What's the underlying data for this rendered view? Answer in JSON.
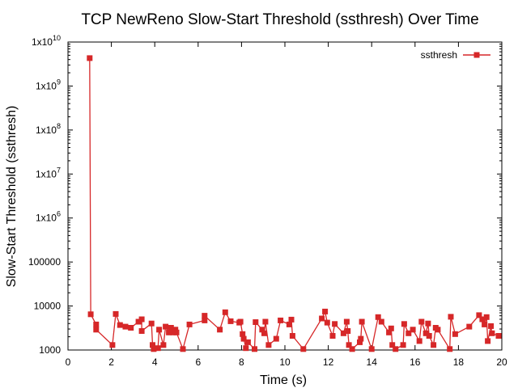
{
  "chart_data": {
    "type": "line",
    "title": "TCP NewReno Slow-Start Threshold (ssthresh) Over Time",
    "xlabel": "Time (s)",
    "ylabel": "Slow-Start Threshold (ssthresh)",
    "xlim": [
      0,
      20
    ],
    "ylim": [
      1000,
      10000000000
    ],
    "yscale": "log",
    "grid": false,
    "legend_position": "top-right",
    "color": "#d62728",
    "x_ticks": [
      "0",
      "2",
      "4",
      "6",
      "8",
      "10",
      "12",
      "14",
      "16",
      "18",
      "20"
    ],
    "y_ticks": [
      {
        "base": "1000",
        "exp": ""
      },
      {
        "base": "10000",
        "exp": ""
      },
      {
        "base": "100000",
        "exp": ""
      },
      {
        "base": "1x10",
        "exp": "6"
      },
      {
        "base": "1x10",
        "exp": "7"
      },
      {
        "base": "1x10",
        "exp": "8"
      },
      {
        "base": "1x10",
        "exp": "9"
      },
      {
        "base": "1x10",
        "exp": "10"
      }
    ],
    "series": [
      {
        "name": "ssthresh",
        "points": [
          [
            1.0,
            4300000000
          ],
          [
            1.05,
            6500
          ],
          [
            1.3,
            3800
          ],
          [
            1.3,
            2900
          ],
          [
            2.05,
            1300
          ],
          [
            2.2,
            6600
          ],
          [
            2.4,
            3700
          ],
          [
            2.65,
            3400
          ],
          [
            2.9,
            3200
          ],
          [
            3.25,
            4400
          ],
          [
            3.4,
            5000
          ],
          [
            3.4,
            2700
          ],
          [
            3.85,
            4000
          ],
          [
            3.9,
            1300
          ],
          [
            3.95,
            1050
          ],
          [
            4.15,
            1100
          ],
          [
            4.2,
            2900
          ],
          [
            4.4,
            1300
          ],
          [
            4.5,
            3400
          ],
          [
            4.65,
            2500
          ],
          [
            4.75,
            3200
          ],
          [
            4.85,
            2500
          ],
          [
            4.95,
            2900
          ],
          [
            5.0,
            2500
          ],
          [
            5.3,
            1050
          ],
          [
            5.6,
            3800
          ],
          [
            6.3,
            4700
          ],
          [
            6.3,
            6000
          ],
          [
            7.0,
            2900
          ],
          [
            7.25,
            7200
          ],
          [
            7.5,
            4500
          ],
          [
            7.9,
            4200
          ],
          [
            7.95,
            4400
          ],
          [
            8.05,
            2300
          ],
          [
            8.1,
            1800
          ],
          [
            8.2,
            1100
          ],
          [
            8.3,
            1500
          ],
          [
            8.6,
            1050
          ],
          [
            8.65,
            4300
          ],
          [
            8.95,
            2900
          ],
          [
            9.05,
            2400
          ],
          [
            9.1,
            4400
          ],
          [
            9.25,
            1300
          ],
          [
            9.6,
            1800
          ],
          [
            9.8,
            4700
          ],
          [
            10.2,
            3800
          ],
          [
            10.3,
            4900
          ],
          [
            10.35,
            2100
          ],
          [
            10.85,
            1050
          ],
          [
            11.7,
            5200
          ],
          [
            11.85,
            7500
          ],
          [
            11.95,
            4200
          ],
          [
            12.2,
            2100
          ],
          [
            12.3,
            3900
          ],
          [
            12.7,
            2400
          ],
          [
            12.85,
            4400
          ],
          [
            12.9,
            2700
          ],
          [
            12.95,
            1300
          ],
          [
            13.1,
            1050
          ],
          [
            13.45,
            1500
          ],
          [
            13.5,
            1800
          ],
          [
            13.55,
            4400
          ],
          [
            14.0,
            1050
          ],
          [
            14.3,
            5600
          ],
          [
            14.45,
            4400
          ],
          [
            14.8,
            2500
          ],
          [
            14.9,
            3100
          ],
          [
            14.95,
            1300
          ],
          [
            15.1,
            1050
          ],
          [
            15.45,
            1300
          ],
          [
            15.5,
            3900
          ],
          [
            15.7,
            2400
          ],
          [
            15.9,
            2900
          ],
          [
            16.2,
            1600
          ],
          [
            16.3,
            4400
          ],
          [
            16.5,
            2400
          ],
          [
            16.6,
            4000
          ],
          [
            16.65,
            2100
          ],
          [
            16.85,
            1300
          ],
          [
            16.95,
            3200
          ],
          [
            17.05,
            2900
          ],
          [
            17.6,
            1050
          ],
          [
            17.65,
            5700
          ],
          [
            17.85,
            2300
          ],
          [
            18.5,
            3400
          ],
          [
            18.95,
            6200
          ],
          [
            19.1,
            5000
          ],
          [
            19.2,
            3800
          ],
          [
            19.3,
            5600
          ],
          [
            19.35,
            1600
          ],
          [
            19.5,
            3500
          ],
          [
            19.55,
            2400
          ],
          [
            19.85,
            2100
          ]
        ]
      }
    ]
  }
}
